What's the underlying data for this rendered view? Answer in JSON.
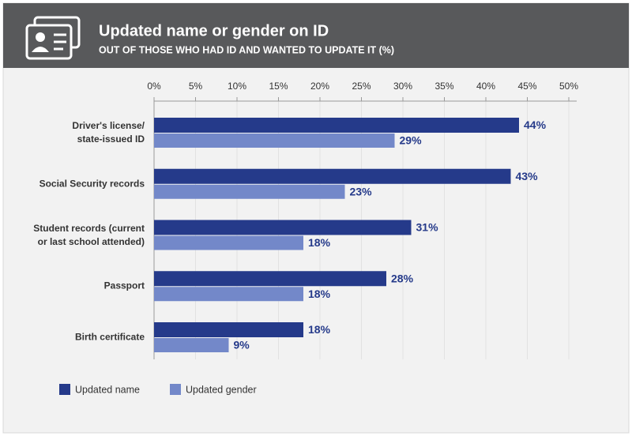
{
  "chart_data": {
    "type": "bar",
    "orientation": "horizontal",
    "title": "Updated name or gender on ID",
    "subtitle": "OUT OF THOSE WHO HAD ID AND WANTED TO UPDATE IT (%)",
    "categories": [
      "Driver's license/\nstate-issued ID",
      "Social Security records",
      "Student records (current\nor last school attended)",
      "Passport",
      "Birth certificate"
    ],
    "series": [
      {
        "name": "Updated name",
        "color": "#253a8a",
        "values": [
          44,
          43,
          31,
          28,
          18
        ],
        "value_labels": [
          "44%",
          "43%",
          "31%",
          "28%",
          "18%"
        ]
      },
      {
        "name": "Updated gender",
        "color": "#7388c9",
        "values": [
          29,
          23,
          18,
          18,
          9
        ],
        "value_labels": [
          "29%",
          "23%",
          "18%",
          "18%",
          "9%"
        ]
      }
    ],
    "xlim": [
      0,
      50
    ],
    "xticks": [
      {
        "value": 0,
        "label": "0%"
      },
      {
        "value": 5,
        "label": "5%"
      },
      {
        "value": 10,
        "label": "10%"
      },
      {
        "value": 15,
        "label": "15%"
      },
      {
        "value": 20,
        "label": "20%"
      },
      {
        "value": 25,
        "label": "25%"
      },
      {
        "value": 30,
        "label": "30%"
      },
      {
        "value": 35,
        "label": "35%"
      },
      {
        "value": 40,
        "label": "40%"
      },
      {
        "value": 45,
        "label": "45%"
      },
      {
        "value": 50,
        "label": "50%"
      }
    ],
    "grid": true,
    "legend": "bottom-left"
  }
}
